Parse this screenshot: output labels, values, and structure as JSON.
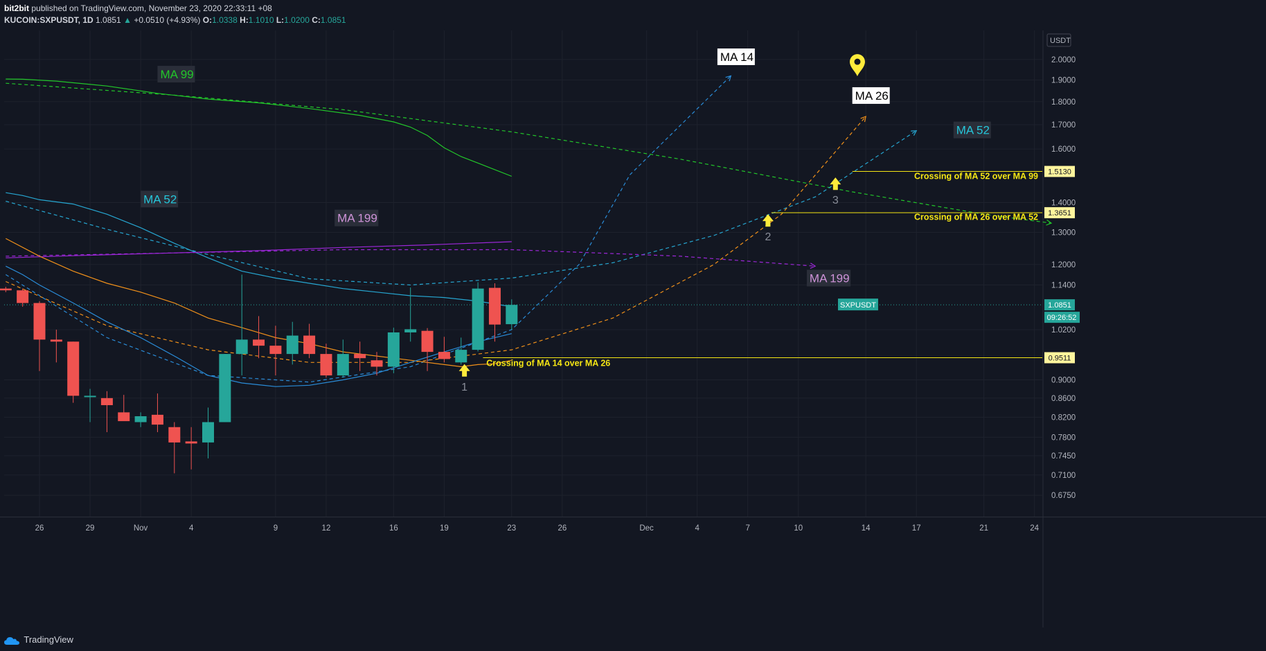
{
  "header": {
    "author": "bit2bit",
    "published_text": "published on TradingView.com, November 23, 2020 22:33:11 +08",
    "symbol": "KUCOIN:SXPUSDT, 1D",
    "last": "1.0851",
    "change": "+0.0510 (+4.93%)",
    "o_label": "O:",
    "o_value": "1.0338",
    "h_label": "H:",
    "h_value": "1.1010",
    "l_label": "L:",
    "l_value": "1.0200",
    "c_label": "C:",
    "c_value": "1.0851"
  },
  "footer": {
    "brand": "TradingView"
  },
  "chart_data": {
    "type": "candlestick",
    "currency": "USDT",
    "ylim": [
      0.64,
      2.15
    ],
    "xlim": [
      0,
      72
    ],
    "y_ticks": [
      "2.0000",
      "1.9000",
      "1.8000",
      "1.7000",
      "1.6000",
      "1.4000",
      "1.3000",
      "1.2000",
      "1.1400",
      "1.0200",
      "0.9000",
      "0.8600",
      "0.8200",
      "0.7800",
      "0.7450",
      "0.7100",
      "0.6750"
    ],
    "x_ticks": [
      {
        "label": "26",
        "x": 2
      },
      {
        "label": "29",
        "x": 5
      },
      {
        "label": "Nov",
        "x": 8
      },
      {
        "label": "4",
        "x": 11
      },
      {
        "label": "9",
        "x": 16
      },
      {
        "label": "12",
        "x": 19
      },
      {
        "label": "16",
        "x": 23
      },
      {
        "label": "19",
        "x": 26
      },
      {
        "label": "23",
        "x": 30
      },
      {
        "label": "26",
        "x": 33
      },
      {
        "label": "Dec",
        "x": 38
      },
      {
        "label": "4",
        "x": 41
      },
      {
        "label": "7",
        "x": 44
      },
      {
        "label": "10",
        "x": 47
      },
      {
        "label": "14",
        "x": 51
      },
      {
        "label": "17",
        "x": 54
      },
      {
        "label": "21",
        "x": 58
      },
      {
        "label": "24",
        "x": 61
      }
    ],
    "candles": [
      {
        "x": 0,
        "o": 1.13,
        "h": 1.135,
        "l": 1.12,
        "c": 1.125
      },
      {
        "x": 1,
        "o": 1.125,
        "h": 1.13,
        "l": 1.08,
        "c": 1.09
      },
      {
        "x": 2,
        "o": 1.09,
        "h": 1.095,
        "l": 0.92,
        "c": 0.995
      },
      {
        "x": 3,
        "o": 0.995,
        "h": 1.02,
        "l": 0.94,
        "c": 0.99
      },
      {
        "x": 4,
        "o": 0.99,
        "h": 0.99,
        "l": 0.85,
        "c": 0.865
      },
      {
        "x": 5,
        "o": 0.865,
        "h": 0.88,
        "l": 0.81,
        "c": 0.865
      },
      {
        "x": 6,
        "o": 0.86,
        "h": 0.875,
        "l": 0.79,
        "c": 0.845
      },
      {
        "x": 7,
        "o": 0.83,
        "h": 0.867,
        "l": 0.815,
        "c": 0.812
      },
      {
        "x": 8,
        "o": 0.81,
        "h": 0.83,
        "l": 0.8,
        "c": 0.822
      },
      {
        "x": 9,
        "o": 0.825,
        "h": 0.87,
        "l": 0.79,
        "c": 0.805
      },
      {
        "x": 10,
        "o": 0.8,
        "h": 0.81,
        "l": 0.713,
        "c": 0.77
      },
      {
        "x": 11,
        "o": 0.772,
        "h": 0.8,
        "l": 0.72,
        "c": 0.768
      },
      {
        "x": 12,
        "o": 0.77,
        "h": 0.84,
        "l": 0.74,
        "c": 0.81
      },
      {
        "x": 13,
        "o": 0.81,
        "h": 0.96,
        "l": 0.81,
        "c": 0.96
      },
      {
        "x": 14,
        "o": 0.96,
        "h": 1.17,
        "l": 0.91,
        "c": 0.995
      },
      {
        "x": 15,
        "o": 0.995,
        "h": 1.055,
        "l": 0.95,
        "c": 0.98
      },
      {
        "x": 16,
        "o": 0.98,
        "h": 1.03,
        "l": 0.91,
        "c": 0.96
      },
      {
        "x": 17,
        "o": 0.96,
        "h": 1.04,
        "l": 0.935,
        "c": 1.005
      },
      {
        "x": 18,
        "o": 1.005,
        "h": 1.035,
        "l": 0.95,
        "c": 0.96
      },
      {
        "x": 19,
        "o": 0.96,
        "h": 0.985,
        "l": 0.905,
        "c": 0.91
      },
      {
        "x": 20,
        "o": 0.91,
        "h": 0.995,
        "l": 0.905,
        "c": 0.96
      },
      {
        "x": 21,
        "o": 0.96,
        "h": 0.99,
        "l": 0.92,
        "c": 0.95
      },
      {
        "x": 22,
        "o": 0.945,
        "h": 0.965,
        "l": 0.91,
        "c": 0.93
      },
      {
        "x": 23,
        "o": 0.93,
        "h": 1.025,
        "l": 0.915,
        "c": 1.013
      },
      {
        "x": 24,
        "o": 1.013,
        "h": 1.133,
        "l": 0.99,
        "c": 1.021
      },
      {
        "x": 25,
        "o": 1.017,
        "h": 1.024,
        "l": 0.92,
        "c": 0.965
      },
      {
        "x": 26,
        "o": 0.965,
        "h": 1.002,
        "l": 0.94,
        "c": 0.948
      },
      {
        "x": 27,
        "o": 0.94,
        "h": 1.0,
        "l": 0.935,
        "c": 0.97
      },
      {
        "x": 28,
        "o": 0.97,
        "h": 1.148,
        "l": 0.966,
        "c": 1.13
      },
      {
        "x": 29,
        "o": 1.132,
        "h": 1.145,
        "l": 0.99,
        "c": 1.033
      },
      {
        "x": 30,
        "o": 1.034,
        "h": 1.1,
        "l": 1.02,
        "c": 1.085
      }
    ],
    "series": [
      {
        "name": "MA 99",
        "color": "#22c62a",
        "points": [
          [
            0,
            1.905
          ],
          [
            1,
            1.904
          ],
          [
            3,
            1.895
          ],
          [
            6,
            1.872
          ],
          [
            9,
            1.838
          ],
          [
            12,
            1.812
          ],
          [
            15,
            1.795
          ],
          [
            18,
            1.77
          ],
          [
            21,
            1.74
          ],
          [
            23,
            1.712
          ],
          [
            24,
            1.69
          ],
          [
            25,
            1.655
          ],
          [
            26,
            1.605
          ],
          [
            27,
            1.57
          ],
          [
            28,
            1.545
          ],
          [
            30,
            1.495
          ]
        ]
      },
      {
        "name": "MA 52",
        "color": "#26a6d1",
        "points": [
          [
            0,
            1.435
          ],
          [
            1,
            1.425
          ],
          [
            2,
            1.41
          ],
          [
            4,
            1.395
          ],
          [
            6,
            1.36
          ],
          [
            8,
            1.315
          ],
          [
            10,
            1.265
          ],
          [
            12,
            1.22
          ],
          [
            14,
            1.18
          ],
          [
            16,
            1.16
          ],
          [
            18,
            1.145
          ],
          [
            20,
            1.13
          ],
          [
            22,
            1.12
          ],
          [
            24,
            1.11
          ],
          [
            26,
            1.105
          ],
          [
            28,
            1.095
          ],
          [
            30,
            1.08
          ]
        ]
      },
      {
        "name": "MA 199",
        "color": "#9c27d8",
        "points": [
          [
            0,
            1.22
          ],
          [
            5,
            1.228
          ],
          [
            10,
            1.235
          ],
          [
            15,
            1.242
          ],
          [
            20,
            1.252
          ],
          [
            25,
            1.26
          ],
          [
            30,
            1.27
          ]
        ]
      },
      {
        "name": "MA 26",
        "color": "#f0901a",
        "points": [
          [
            0,
            1.28
          ],
          [
            2,
            1.225
          ],
          [
            4,
            1.18
          ],
          [
            6,
            1.145
          ],
          [
            8,
            1.12
          ],
          [
            10,
            1.09
          ],
          [
            12,
            1.05
          ],
          [
            14,
            1.025
          ],
          [
            16,
            1.0
          ],
          [
            18,
            0.985
          ],
          [
            20,
            0.965
          ],
          [
            22,
            0.955
          ],
          [
            24,
            0.945
          ],
          [
            26,
            0.935
          ],
          [
            27,
            0.93
          ],
          [
            28,
            0.935
          ],
          [
            29,
            0.937
          ],
          [
            30,
            0.945
          ]
        ]
      },
      {
        "name": "MA 14",
        "color": "#2a8cd8",
        "points": [
          [
            0,
            1.195
          ],
          [
            1,
            1.17
          ],
          [
            2,
            1.14
          ],
          [
            4,
            1.09
          ],
          [
            6,
            1.04
          ],
          [
            8,
            1.0
          ],
          [
            10,
            0.955
          ],
          [
            12,
            0.91
          ],
          [
            14,
            0.893
          ],
          [
            16,
            0.885
          ],
          [
            18,
            0.888
          ],
          [
            20,
            0.9
          ],
          [
            22,
            0.915
          ],
          [
            24,
            0.94
          ],
          [
            26,
            0.965
          ],
          [
            28,
            0.99
          ],
          [
            30,
            1.01
          ]
        ]
      }
    ],
    "projections": [
      {
        "name": "MA 99 proj",
        "color": "#22c62a",
        "points": [
          [
            0,
            1.885
          ],
          [
            10,
            1.83
          ],
          [
            20,
            1.765
          ],
          [
            30,
            1.67
          ],
          [
            40,
            1.56
          ],
          [
            50,
            1.44
          ],
          [
            58,
            1.36
          ],
          [
            62,
            1.33
          ]
        ]
      },
      {
        "name": "MA 52 proj",
        "color": "#26a6d1",
        "points": [
          [
            0,
            1.405
          ],
          [
            6,
            1.31
          ],
          [
            12,
            1.23
          ],
          [
            18,
            1.158
          ],
          [
            24,
            1.14
          ],
          [
            30,
            1.16
          ],
          [
            36,
            1.205
          ],
          [
            42,
            1.29
          ],
          [
            48,
            1.42
          ],
          [
            54,
            1.675
          ]
        ]
      },
      {
        "name": "MA 199 proj",
        "color": "#9c27d8",
        "points": [
          [
            0,
            1.225
          ],
          [
            10,
            1.235
          ],
          [
            20,
            1.245
          ],
          [
            30,
            1.245
          ],
          [
            40,
            1.225
          ],
          [
            48,
            1.195
          ]
        ]
      },
      {
        "name": "MA 26 proj",
        "color": "#f0901a",
        "points": [
          [
            0,
            1.15
          ],
          [
            6,
            1.03
          ],
          [
            12,
            0.97
          ],
          [
            18,
            0.94
          ],
          [
            24,
            0.94
          ],
          [
            30,
            0.97
          ],
          [
            36,
            1.05
          ],
          [
            42,
            1.2
          ],
          [
            46,
            1.36
          ],
          [
            51,
            1.735
          ]
        ]
      },
      {
        "name": "MA 14 proj",
        "color": "#2a8cd8",
        "points": [
          [
            0,
            1.17
          ],
          [
            6,
            1.0
          ],
          [
            12,
            0.91
          ],
          [
            18,
            0.895
          ],
          [
            24,
            0.93
          ],
          [
            30,
            1.02
          ],
          [
            34,
            1.2
          ],
          [
            37,
            1.5
          ],
          [
            43,
            1.92
          ]
        ]
      }
    ],
    "series_labels": [
      {
        "text": "MA 99",
        "color": "#22c62a",
        "bg": "#2a2e39",
        "x": 9,
        "y": 1.925
      },
      {
        "text": "MA 52",
        "color": "#26c6da",
        "bg": "#2a2e39",
        "x": 8,
        "y": 1.41
      },
      {
        "text": "MA 199",
        "color": "#ce93d8",
        "bg": "#2a2e39",
        "x": 19.5,
        "y": 1.345
      },
      {
        "text": "MA 14",
        "color": "#000000",
        "bg": "#ffffff",
        "x": 42.2,
        "y": 2.01
      },
      {
        "text": "MA 26",
        "color": "#000000",
        "bg": "#ffffff",
        "x": 50.2,
        "y": 1.825
      },
      {
        "text": "MA 52",
        "color": "#26c6da",
        "bg": "#2a2e39",
        "x": 56.2,
        "y": 1.675
      },
      {
        "text": "MA 199",
        "color": "#ce93d8",
        "bg": "#2a2e39",
        "x": 47.5,
        "y": 1.158
      }
    ],
    "crossings": [
      {
        "marker": "1",
        "label": "Crossing of MA 14 over MA 26",
        "level": "0.9511",
        "y": 0.9511,
        "x": 27.2,
        "arrow_y": 0.92,
        "line_from": 28.3,
        "label_x": 28.5,
        "label_y": 0.938
      },
      {
        "marker": "2",
        "label": "Crossing of MA 26 over MA 52",
        "level": "1.3651",
        "y": 1.3651,
        "x": 45.2,
        "arrow_y": 1.337,
        "line_from": 45.4,
        "label_x": 62,
        "label_y": 1.35
      },
      {
        "marker": "3",
        "label": "Crossing of MA 52 over MA 99",
        "level": "1.5130",
        "y": 1.513,
        "x": 49.2,
        "arrow_y": 1.465,
        "line_from": 50.2,
        "label_x": 62,
        "label_y": 1.495
      }
    ],
    "symbol_tag": {
      "text": "SXPUSDT",
      "x": 50.5,
      "y": 1.0851
    },
    "last_price": {
      "value": "1.0851",
      "countdown": "09:26:52",
      "color": "#26a69a"
    },
    "pin": {
      "x": 50.5,
      "y": 1.975
    }
  }
}
